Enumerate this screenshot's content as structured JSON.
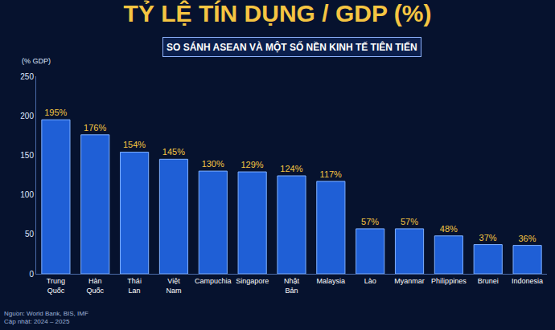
{
  "chart_data": {
    "type": "bar",
    "title": "TỶ LỆ TÍN DỤNG / GDP (%)",
    "subtitle": "SO SÁNH ASEAN VÀ MỘT SỐ NỀN KINH TẾ TIÊN TIẾN",
    "ylabel": "(% GDP)",
    "annotations": [
      "Nguồn: World Bank, BIS, IMF",
      "Cập nhật: 2024 – 2025"
    ],
    "categories": [
      "Trung Quốc",
      "Hàn Quốc",
      "Thái Lan",
      "Việt Nam",
      "Campuchia",
      "Singapore",
      "Nhật Bản",
      "Malaysia",
      "Lào",
      "Myanmar",
      "Philippines",
      "Brunei",
      "Indonesia"
    ],
    "values": [
      195,
      176,
      154,
      145,
      130,
      129,
      124,
      117,
      57,
      57,
      48,
      37,
      36
    ],
    "value_labels": [
      "195%",
      "176%",
      "154%",
      "145%",
      "130%",
      "129%",
      "124%",
      "117%",
      "57%",
      "57%",
      "48%",
      "37%",
      "36%"
    ],
    "color": "#1f5fd6",
    "ylim": [
      0,
      250
    ],
    "yticks": [
      0,
      50,
      100,
      150,
      200,
      250
    ],
    "grid": false,
    "data_labels": true
  }
}
